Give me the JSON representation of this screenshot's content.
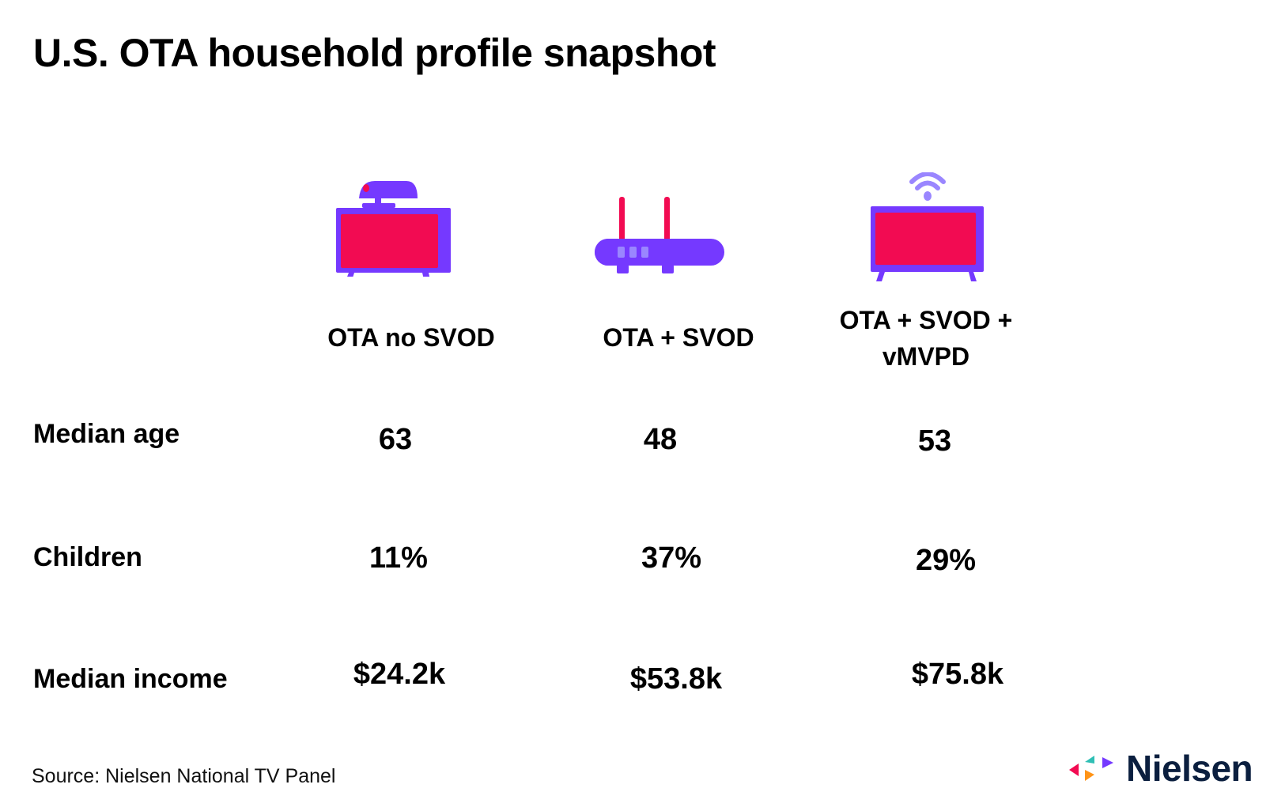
{
  "title": "U.S. OTA household profile snapshot",
  "columns": [
    {
      "label": "OTA no SVOD",
      "icon": "antenna-tv-icon"
    },
    {
      "label": "OTA + SVOD",
      "icon": "router-icon"
    },
    {
      "label": "OTA + SVOD + vMVPD",
      "icon": "wifi-tv-icon"
    }
  ],
  "rows": [
    {
      "label": "Median age",
      "values": [
        "63",
        "48",
        "53"
      ]
    },
    {
      "label": "Children",
      "values": [
        "11%",
        "37%",
        "29%"
      ]
    },
    {
      "label": "Median income",
      "values": [
        "$24.2k",
        "$53.8k",
        "$75.8k"
      ]
    }
  ],
  "source": "Source: Nielsen National TV Panel",
  "logo": "Nielsen",
  "colors": {
    "purple": "#7539ff",
    "pink": "#f20b52",
    "light_purple": "#9a86ff",
    "navy": "#0b1f3f"
  }
}
